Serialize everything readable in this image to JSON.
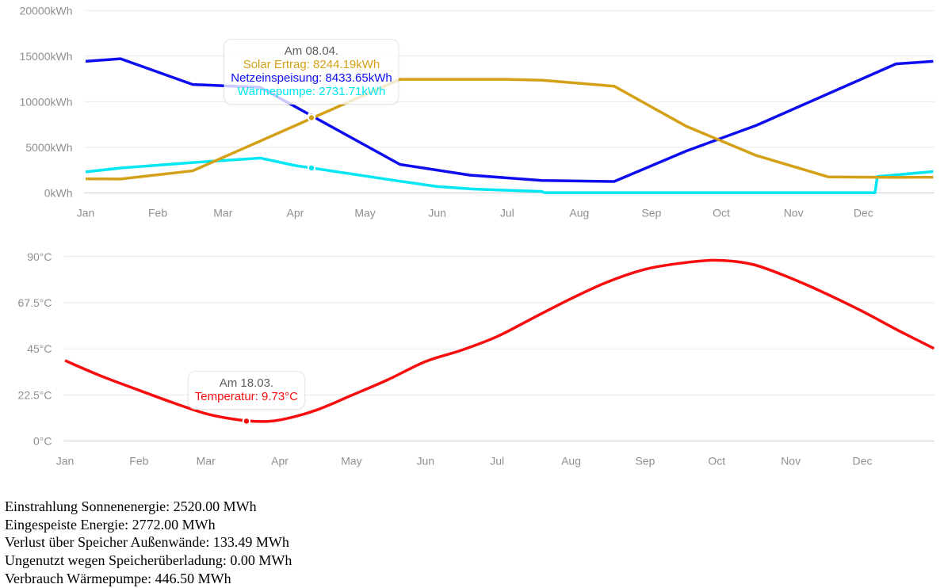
{
  "page": {
    "background": "#ffffff",
    "grid_color": "#e9e9e9",
    "zero_grid_color": "#cfcfcf",
    "tick_label_color": "#8f8f8f"
  },
  "chart_data": [
    {
      "id": "energy",
      "type": "line",
      "title": "",
      "xlabel": "",
      "ylabel": "",
      "x_unit": "day-of-year",
      "x_tick_labels": [
        "Jan",
        "Feb",
        "Mar",
        "Apr",
        "May",
        "Jun",
        "Jul",
        "Aug",
        "Sep",
        "Oct",
        "Nov",
        "Dec"
      ],
      "x_tick_days": [
        0,
        31,
        59,
        90,
        120,
        151,
        181,
        212,
        243,
        273,
        304,
        334
      ],
      "y_ticks": [
        {
          "value": 0,
          "label": "0kWh"
        },
        {
          "value": 5000,
          "label": "5000kWh"
        },
        {
          "value": 10000,
          "label": "10000kWh"
        },
        {
          "value": 15000,
          "label": "15000kWh"
        },
        {
          "value": 20000,
          "label": "20000kWh"
        }
      ],
      "ylim": [
        0,
        20000
      ],
      "xlim_days": [
        0,
        364
      ],
      "grid": "horizontal-only",
      "legend": false,
      "series": [
        {
          "name": "Solar Ertrag",
          "color": "#d4a017",
          "unit": "kWh",
          "points": [
            [
              0,
              1540
            ],
            [
              15,
              1520
            ],
            [
              46,
              2420
            ],
            [
              135,
              12450
            ],
            [
              181,
              12450
            ],
            [
              196,
              12350
            ],
            [
              227,
              11700
            ],
            [
              258,
              7300
            ],
            [
              288,
              4100
            ],
            [
              319,
              1750
            ],
            [
              349,
              1700
            ],
            [
              364,
              1720
            ]
          ]
        },
        {
          "name": "Netzeinspeisung",
          "color": "#0d0df0",
          "unit": "kWh",
          "points": [
            [
              0,
              14430
            ],
            [
              15,
              14715
            ],
            [
              46,
              11890
            ],
            [
              75,
              11570
            ],
            [
              135,
              3120
            ],
            [
              165,
              1950
            ],
            [
              196,
              1360
            ],
            [
              227,
              1250
            ],
            [
              258,
              4600
            ],
            [
              288,
              7400
            ],
            [
              348,
              14150
            ],
            [
              364,
              14430
            ]
          ]
        },
        {
          "name": "Wärmepumpe",
          "color": "#00e6f2",
          "unit": "kWh",
          "points": [
            [
              0,
              2300
            ],
            [
              15,
              2730
            ],
            [
              46,
              3330
            ],
            [
              75,
              3820
            ],
            [
              90,
              3000
            ],
            [
              135,
              1280
            ],
            [
              151,
              700
            ],
            [
              166,
              430
            ],
            [
              181,
              280
            ],
            [
              196,
              150
            ],
            [
              197,
              25
            ],
            [
              339,
              25
            ],
            [
              340,
              1790
            ],
            [
              364,
              2340
            ]
          ]
        }
      ]
    },
    {
      "id": "temperature",
      "type": "line",
      "title": "",
      "xlabel": "",
      "ylabel": "",
      "x_unit": "day-of-year",
      "x_tick_labels": [
        "Jan",
        "Feb",
        "Mar",
        "Apr",
        "May",
        "Jun",
        "Jul",
        "Aug",
        "Sep",
        "Oct",
        "Nov",
        "Dec"
      ],
      "x_tick_days": [
        0,
        31,
        59,
        90,
        120,
        151,
        181,
        212,
        243,
        273,
        304,
        334
      ],
      "y_ticks": [
        {
          "value": 0,
          "label": "0°C"
        },
        {
          "value": 22.5,
          "label": "22.5°C"
        },
        {
          "value": 45,
          "label": "45°C"
        },
        {
          "value": 67.5,
          "label": "67.5°C"
        },
        {
          "value": 90,
          "label": "90°C"
        }
      ],
      "ylim": [
        0,
        90
      ],
      "xlim_days": [
        0,
        364
      ],
      "grid": "horizontal-only",
      "legend": false,
      "series": [
        {
          "name": "Temperatur",
          "color": "#f70d0d",
          "unit": "°C",
          "points": [
            [
              0,
              39.3
            ],
            [
              15,
              31.8
            ],
            [
              31,
              24.8
            ],
            [
              46,
              18.4
            ],
            [
              59,
              13.4
            ],
            [
              70,
              10.8
            ],
            [
              80,
              9.6
            ],
            [
              90,
              10.3
            ],
            [
              105,
              15.0
            ],
            [
              120,
              22.3
            ],
            [
              135,
              29.8
            ],
            [
              151,
              38.8
            ],
            [
              166,
              44.3
            ],
            [
              181,
              51.0
            ],
            [
              196,
              60.0
            ],
            [
              212,
              69.5
            ],
            [
              227,
              77.5
            ],
            [
              243,
              83.8
            ],
            [
              258,
              86.8
            ],
            [
              273,
              88.2
            ],
            [
              288,
              86.2
            ],
            [
              304,
              79.5
            ],
            [
              319,
              71.8
            ],
            [
              334,
              63.3
            ],
            [
              349,
              54.0
            ],
            [
              364,
              45.2
            ]
          ]
        }
      ]
    }
  ],
  "tooltips": [
    {
      "chart": "energy",
      "title": "Am 08.04.",
      "day": 97,
      "items": [
        {
          "text": "Solar Ertrag: 8244.19kWh",
          "value": 8244.19,
          "color": "#d4a017"
        },
        {
          "text": "Netzeinspeisung: 8433.65kWh",
          "value": 8433.65,
          "color": "#0d0df0"
        },
        {
          "text": "Wärmepumpe: 2731.71kWh",
          "value": 2731.71,
          "color": "#00e6f2"
        }
      ]
    },
    {
      "chart": "temperature",
      "title": "Am 18.03.",
      "day": 76,
      "items": [
        {
          "text": "Temperatur: 9.73°C",
          "value": 9.73,
          "color": "#f70d0d"
        }
      ]
    }
  ],
  "summary": {
    "lines": [
      "Einstrahlung Sonnenenergie: 2520.00 MWh",
      "Eingespeiste Energie: 2772.00 MWh",
      "Verlust über Speicher Außenwände: 133.49 MWh",
      "Ungenutzt wegen Speicherüberladung: 0.00 MWh",
      "Verbrauch Wärmepumpe: 446.50 MWh"
    ]
  }
}
